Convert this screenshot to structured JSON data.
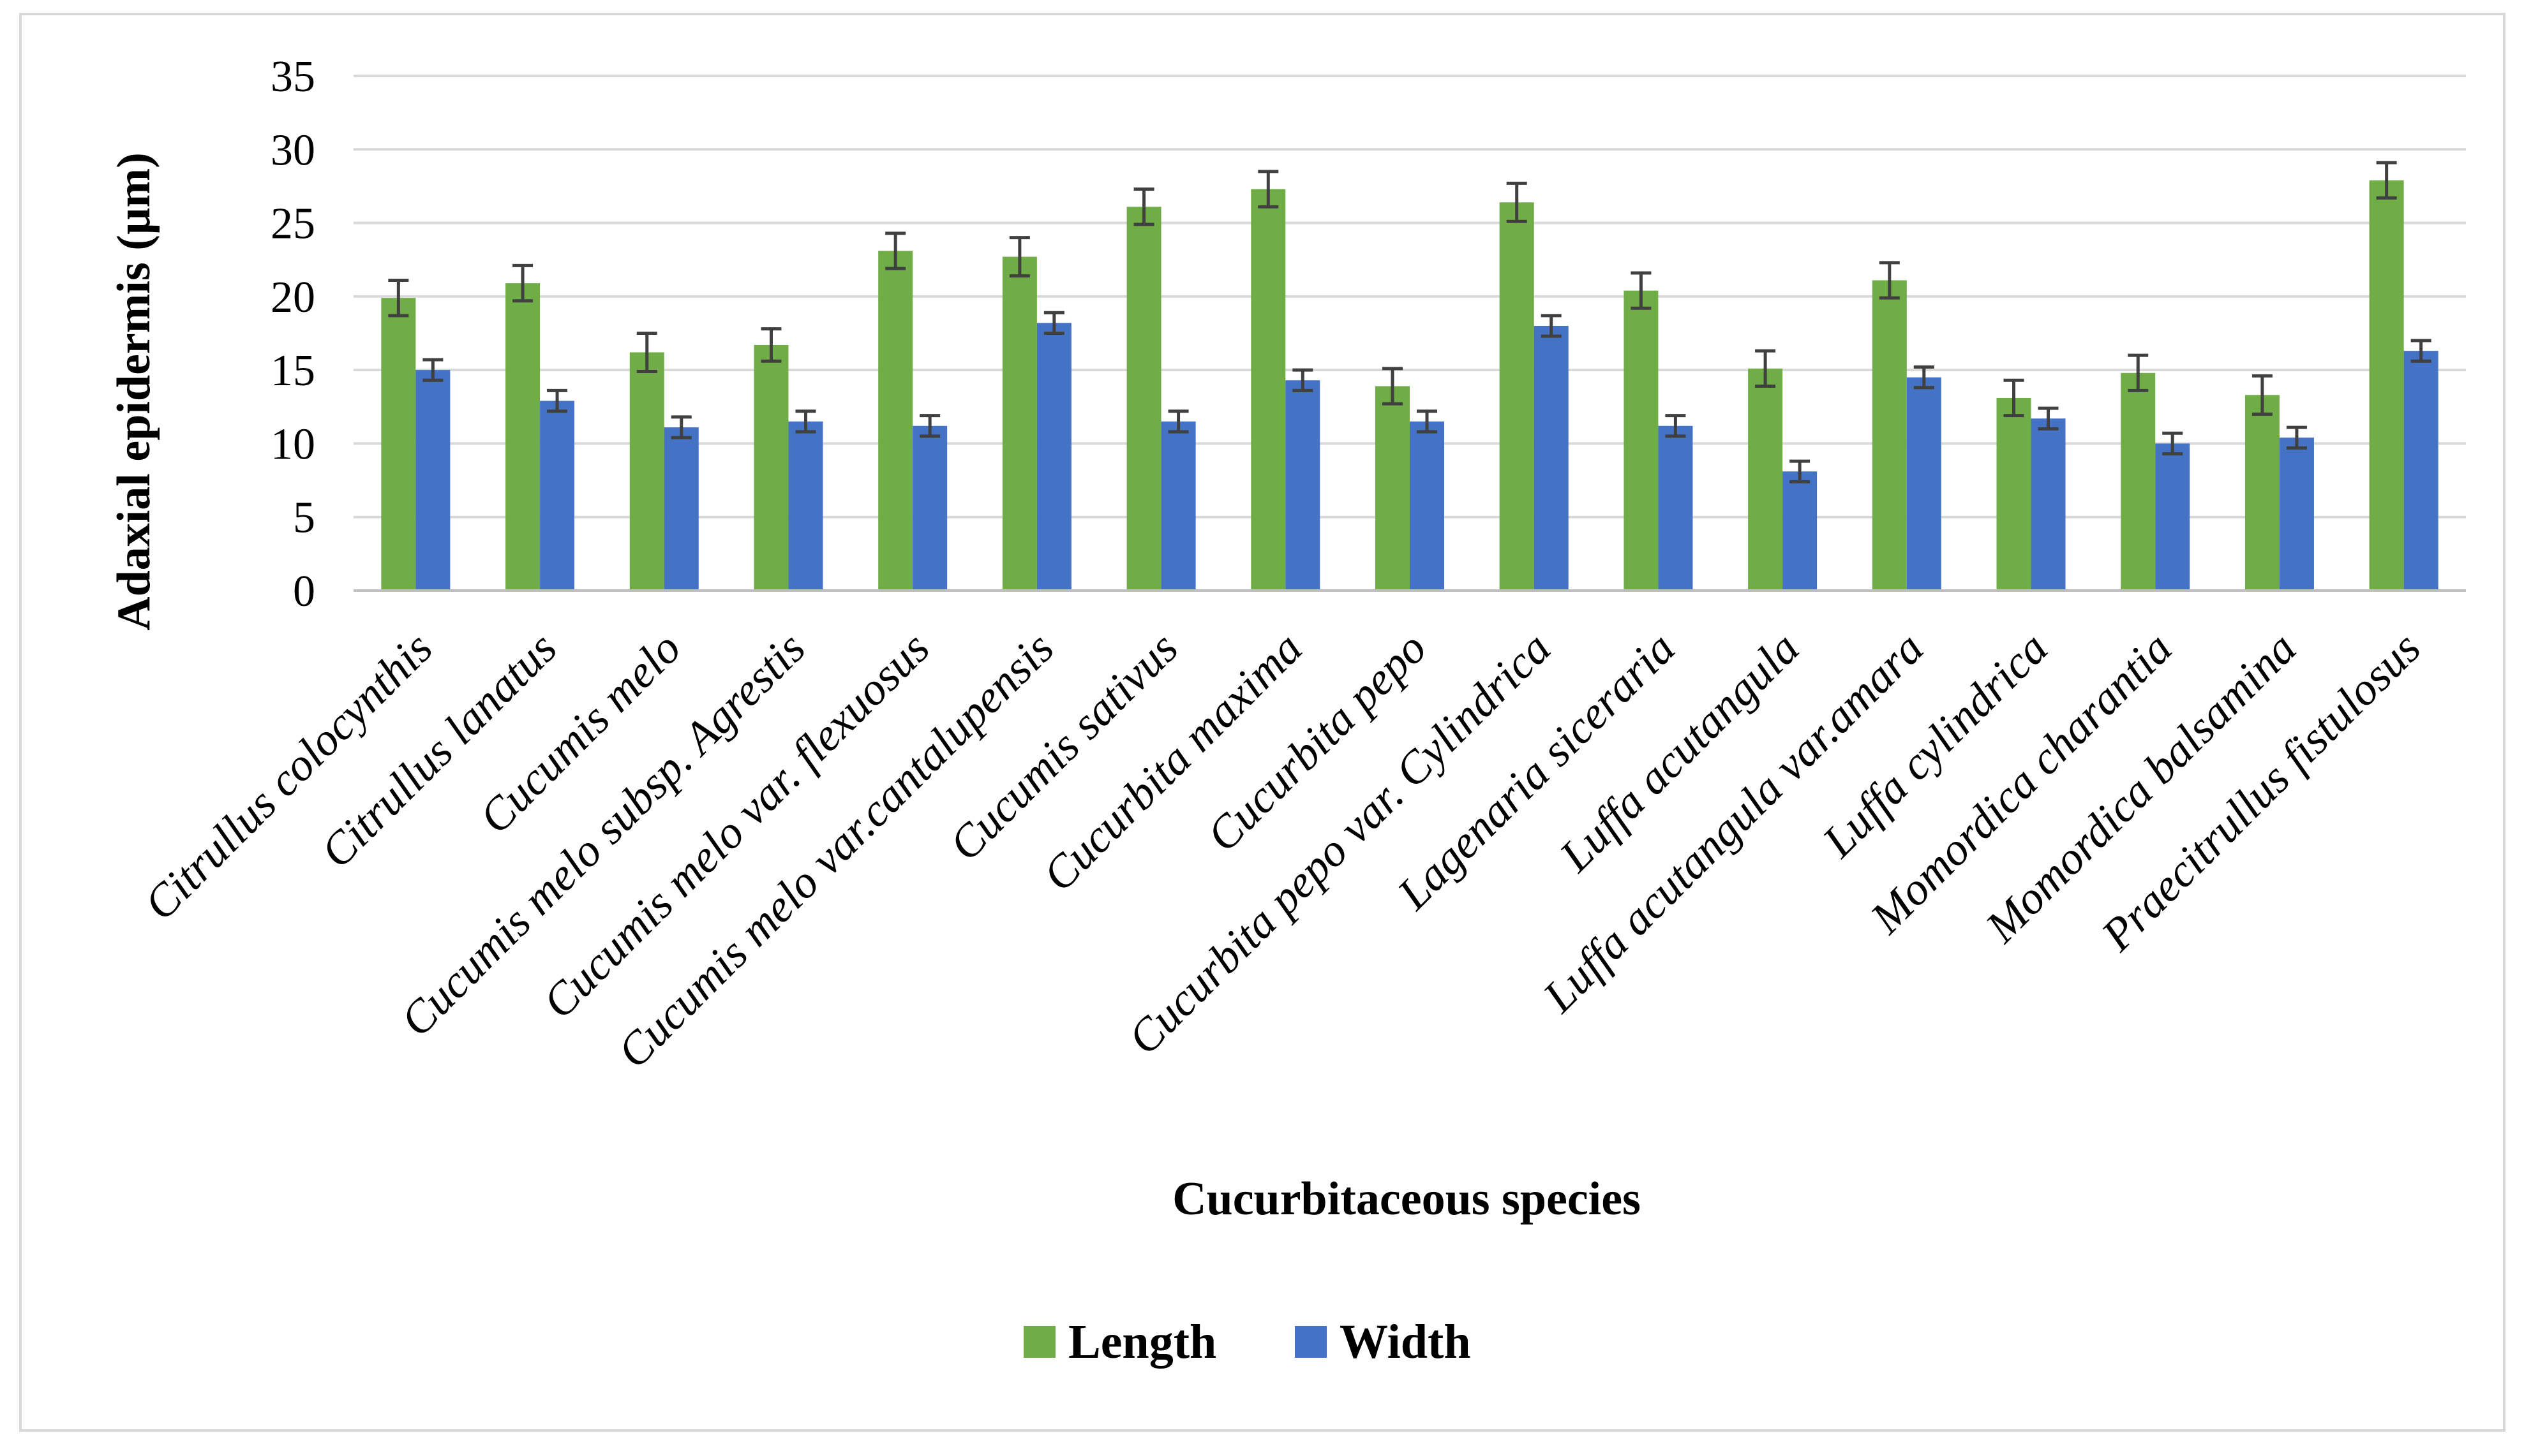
{
  "chart_data": {
    "type": "bar",
    "title": "",
    "xlabel": "Cucurbitaceous species",
    "ylabel": "Adaxial epidermis (µm)",
    "ylim": [
      0,
      35
    ],
    "yticks": [
      0,
      5,
      10,
      15,
      20,
      25,
      30,
      35
    ],
    "grid": true,
    "legend_position": "bottom",
    "categories": [
      "Citrullus colocynthis",
      "Citrullus lanatus",
      "Cucumis melo",
      "Cucumis melo subsp. Agrestis",
      "Cucumis melo var. flexuosus",
      "Cucumis melo var.cantalupensis",
      "Cucumis sativus",
      "Cucurbita maxima",
      "Cucurbita pepo",
      "Cucurbita pepo var. Cylindrica",
      "Lagenaria siceraria",
      "Luffa acutangula",
      "Luffa acutangula var.amara",
      "Luffa cylindrica",
      "Momordica charantia",
      "Momordica balsamina",
      "Praecitrullus fistulosus"
    ],
    "series": [
      {
        "name": "Length",
        "color": "#70ad47",
        "values": [
          19.9,
          20.9,
          16.2,
          16.7,
          23.1,
          22.7,
          26.1,
          27.3,
          13.9,
          26.4,
          20.4,
          15.1,
          21.1,
          13.1,
          14.8,
          13.3,
          27.9
        ],
        "errors": [
          1.2,
          1.2,
          1.3,
          1.1,
          1.2,
          1.3,
          1.2,
          1.2,
          1.2,
          1.3,
          1.2,
          1.2,
          1.2,
          1.2,
          1.2,
          1.3,
          1.2
        ]
      },
      {
        "name": "Width",
        "color": "#4472c4",
        "values": [
          15.0,
          12.9,
          11.1,
          11.5,
          11.2,
          18.2,
          11.5,
          14.3,
          11.5,
          18.0,
          11.2,
          8.1,
          14.5,
          11.7,
          10.0,
          10.4,
          16.3
        ],
        "errors": [
          0.7,
          0.7,
          0.7,
          0.7,
          0.7,
          0.7,
          0.7,
          0.7,
          0.7,
          0.7,
          0.7,
          0.7,
          0.7,
          0.7,
          0.7,
          0.7,
          0.7
        ]
      }
    ]
  }
}
